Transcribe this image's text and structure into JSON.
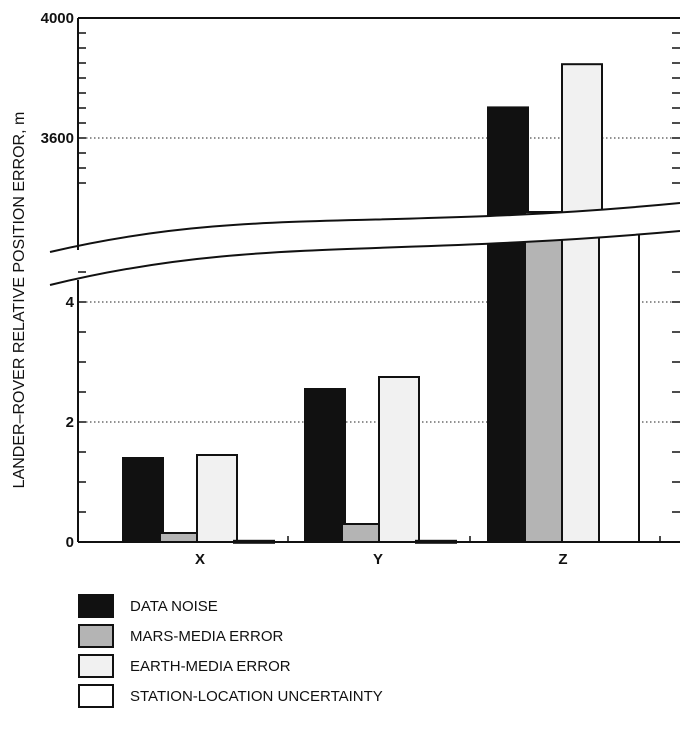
{
  "chart_data": {
    "type": "bar",
    "ylabel": "LANDER–ROVER RELATIVE POSITION ERROR, m",
    "axis_break": {
      "lower_range": [
        0,
        5
      ],
      "upper_range": [
        3400,
        4000
      ]
    },
    "lower_ticks": [
      "0",
      "2",
      "4"
    ],
    "upper_ticks": [
      "3600",
      "4000"
    ],
    "categories": [
      "X",
      "Y",
      "Z"
    ],
    "series": [
      {
        "name": "DATA NOISE",
        "color": "#111111",
        "values": [
          1.4,
          2.55,
          3702
        ]
      },
      {
        "name": "MARS-MEDIA ERROR",
        "color": "#b4b4b4",
        "values": [
          0.15,
          0.3,
          5.5
        ]
      },
      {
        "name": "EARTH-MEDIA ERROR",
        "color": "#f1f1f1",
        "values": [
          1.45,
          2.75,
          3846
        ]
      },
      {
        "name": "STATION-LOCATION UNCERTAINTY",
        "color": "#ffffff",
        "values": [
          0.02,
          0.02,
          5.5
        ]
      }
    ],
    "grid": "horizontal dotted at labeled ticks"
  },
  "legend": {
    "items": [
      {
        "label": "DATA NOISE",
        "color": "#111111"
      },
      {
        "label": "MARS-MEDIA ERROR",
        "color": "#b4b4b4"
      },
      {
        "label": "EARTH-MEDIA ERROR",
        "color": "#f1f1f1"
      },
      {
        "label": "STATION-LOCATION UNCERTAINTY",
        "color": "#ffffff"
      }
    ]
  }
}
